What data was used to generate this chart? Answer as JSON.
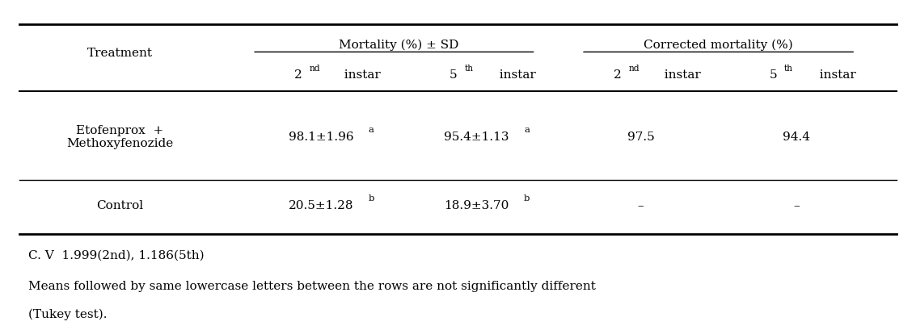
{
  "col_header_row1": [
    "",
    "Mortality (%) ± SD",
    "",
    "Corrected mortality (%)",
    ""
  ],
  "col_header_row2": [
    "Treatment",
    "2nd instar",
    "5th instar",
    "2nd instar",
    "5th instar"
  ],
  "rows": [
    [
      "Etofenprox +\nMethoxyfenozide",
      "98.1±1.96a",
      "95.4±1.13a",
      "97.5",
      "94.4"
    ],
    [
      "Control",
      "20.5±1.28b",
      "18.9±3.70b",
      "–",
      "–"
    ]
  ],
  "footnote1": "C. V  1.999(2nd), 1.186(5th)",
  "footnote2": "Means followed by same lowercase letters between the rows are not significantly different",
  "footnote3": "(Tukey test).",
  "bg_color": "#ffffff",
  "text_color": "#000000",
  "font_size": 11,
  "superscript_letters": {
    "98.1±1.96a": "a",
    "95.4±1.13a": "a",
    "20.5±1.28b": "b",
    "18.9±3.70b": "b"
  }
}
